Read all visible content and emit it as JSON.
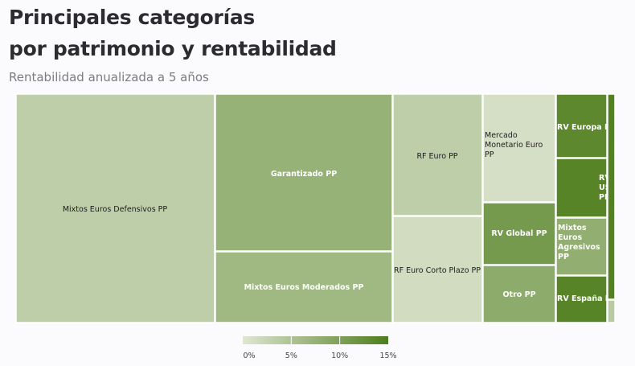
{
  "header": {
    "title_line1": "Principales categorías",
    "title_line2": "por patrimonio y rentabilidad",
    "subtitle": "Rentabilidad anualizada a 5 años"
  },
  "chart_data": {
    "type": "treemap",
    "title": "Principales categorías por patrimonio y rentabilidad",
    "subtitle": "Rentabilidad anualizada a 5 años",
    "color_scale": {
      "domain": [
        0,
        15
      ],
      "unit": "%",
      "ticks": [
        "0%",
        "5%",
        "10%",
        "15%"
      ],
      "colors": [
        "#dfe6d2",
        "#4e7d1c"
      ]
    },
    "categories": [
      {
        "label": "Mixtos Euros Defensivos PP",
        "rentabilidad": 3.5,
        "patrimonio_share": 0.302
      },
      {
        "label": "Garantizado PP",
        "rentabilidad": 7.5,
        "patrimonio_share": 0.18
      },
      {
        "label": "Mixtos Euros Moderados PP",
        "rentabilidad": 6.5,
        "patrimonio_share": 0.082
      },
      {
        "label": "RF Euro PP",
        "rentabilidad": 3.5,
        "patrimonio_share": 0.068
      },
      {
        "label": "RF Euro Corto Plazo PP",
        "rentabilidad": 1.5,
        "patrimonio_share": 0.06
      },
      {
        "label": "Mercado Monetario Euro PP",
        "rentabilidad": 1.0,
        "patrimonio_share": 0.047
      },
      {
        "label": "RV Global PP",
        "rentabilidad": 11.0,
        "patrimonio_share": 0.032
      },
      {
        "label": "Otro PP",
        "rentabilidad": 8.5,
        "patrimonio_share": 0.03
      },
      {
        "label": "RV Europa PP",
        "rentabilidad": 13.5,
        "patrimonio_share": 0.022
      },
      {
        "label": "RV USA PP",
        "rentabilidad": 14.0,
        "patrimonio_share": 0.02
      },
      {
        "label": "Mixtos Euros Agresivos PP",
        "rentabilidad": 8.0,
        "patrimonio_share": 0.018
      },
      {
        "label": "RV España PP",
        "rentabilidad": 14.0,
        "patrimonio_share": 0.017
      },
      {
        "label": "",
        "rentabilidad": 14.5,
        "patrimonio_share": 0.007
      },
      {
        "label": "",
        "rentabilidad": 4.0,
        "patrimonio_share": 0.001
      }
    ]
  }
}
